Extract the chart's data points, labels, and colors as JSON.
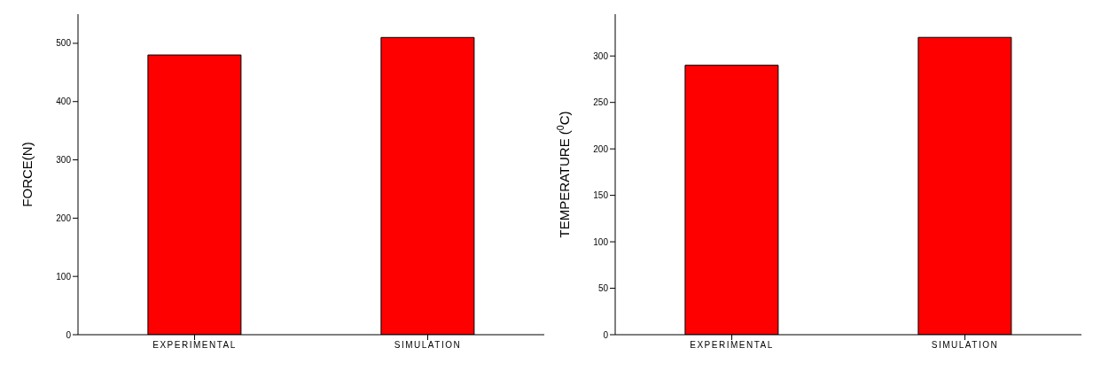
{
  "chart_data": [
    {
      "type": "bar",
      "ylabel": "FORCE(N)",
      "categories": [
        "EXPERIMENTAL",
        "SIMULATION"
      ],
      "values": [
        480,
        510
      ],
      "color": "#ff0000",
      "ylim": [
        0,
        550
      ],
      "yticks": [
        0,
        100,
        200,
        300,
        400,
        500
      ],
      "grid": false,
      "legend": false
    },
    {
      "type": "bar",
      "ylabel": "TEMPERATURE ($^{0}$C)",
      "categories": [
        "EXPERIMENTAL",
        "SIMULATION"
      ],
      "values": [
        290,
        320
      ],
      "color": "#ff0000",
      "ylim": [
        0,
        345
      ],
      "yticks": [
        0,
        50,
        100,
        150,
        200,
        250,
        300
      ],
      "grid": false,
      "legend": false
    }
  ]
}
